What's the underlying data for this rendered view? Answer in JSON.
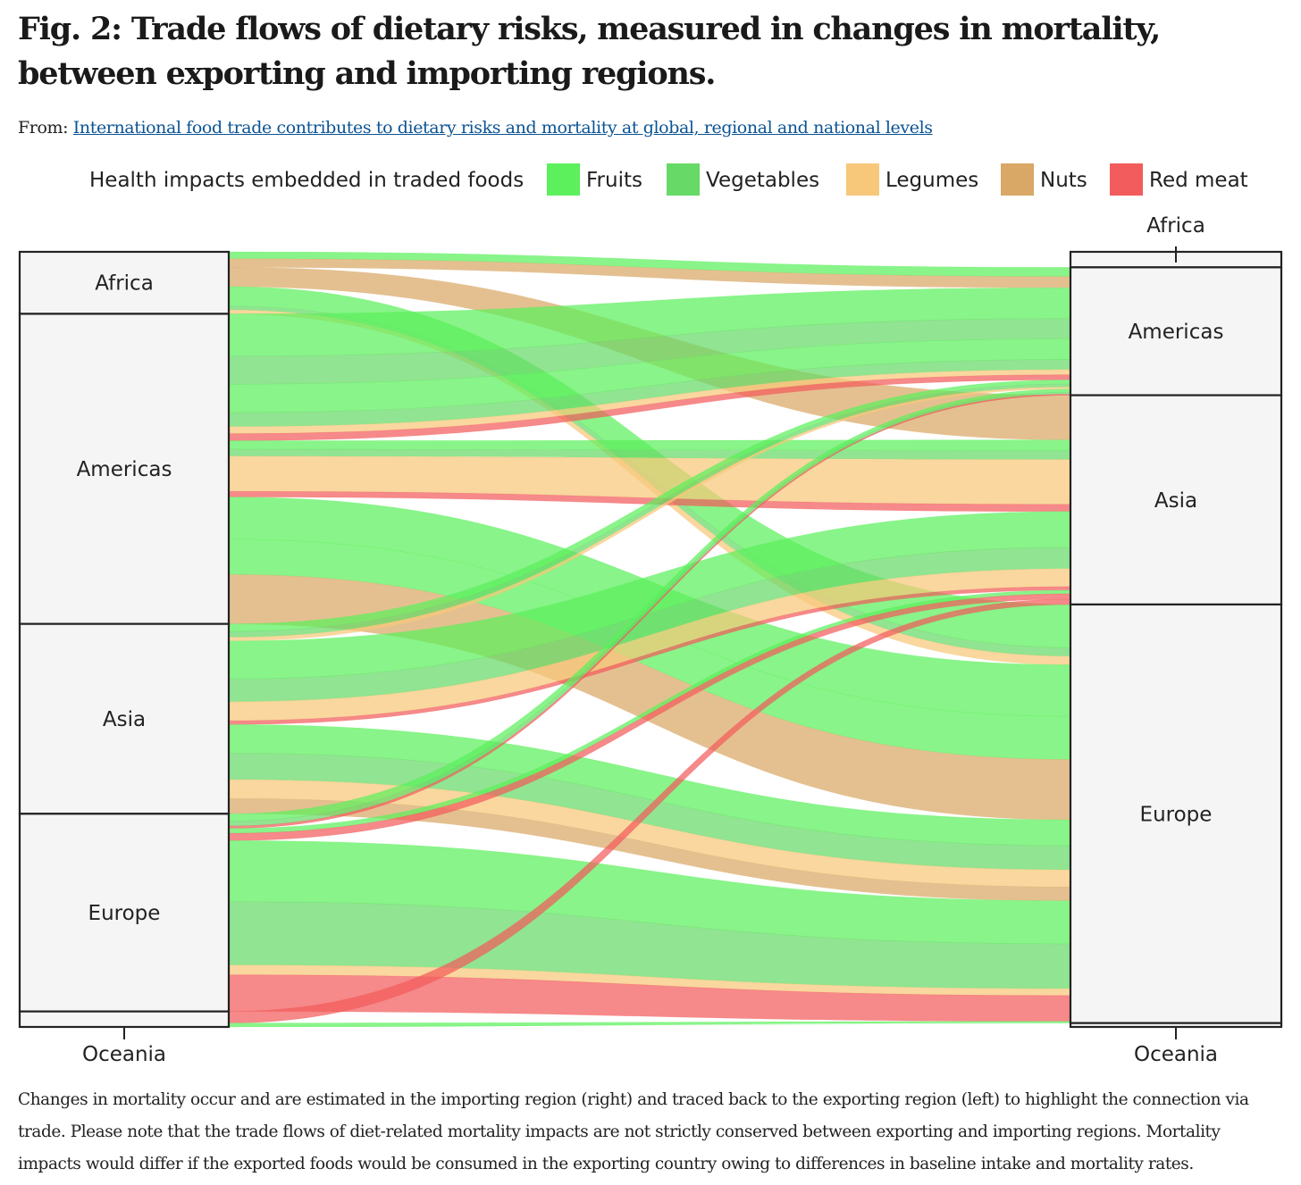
{
  "figure": {
    "title": "Fig. 2: Trade flows of dietary risks, measured in changes in mortality, between exporting and importing regions.",
    "source_prefix": "From:",
    "source_link": "International food trade contributes to dietary risks and mortality at global, regional and national levels",
    "caption": "Changes in mortality occur and are estimated in the importing region (right) and traced back to the exporting region (left) to highlight the connection via trade. Please note that the trade flows of diet-related mortality impacts are not strictly conserved between exporting and importing regions. Mortality impacts would differ if the exported foods would be consumed in the exporting country owing to differences in baseline intake and mortality rates."
  },
  "chart_data": {
    "type": "sankey",
    "legend_title": "Health impacts embedded in traded foods",
    "legend_position": "top",
    "categories": [
      {
        "name": "Fruits",
        "color": "#5cf05c"
      },
      {
        "name": "Vegetables",
        "color": "#66d966"
      },
      {
        "name": "Legumes",
        "color": "#f7c87a"
      },
      {
        "name": "Nuts",
        "color": "#d9a866"
      },
      {
        "name": "Red meat",
        "color": "#f25c5c"
      }
    ],
    "exporters": [
      {
        "name": "Africa",
        "share": 0.08
      },
      {
        "name": "Americas",
        "share": 0.4
      },
      {
        "name": "Asia",
        "share": 0.245
      },
      {
        "name": "Europe",
        "share": 0.255
      },
      {
        "name": "Oceania",
        "share": 0.02
      }
    ],
    "importers": [
      {
        "name": "Africa",
        "share": 0.02
      },
      {
        "name": "Americas",
        "share": 0.165
      },
      {
        "name": "Asia",
        "share": 0.27
      },
      {
        "name": "Europe",
        "share": 0.54
      },
      {
        "name": "Oceania",
        "share": 0.005
      }
    ],
    "flows": [
      {
        "from": "Africa",
        "to": "Americas",
        "category": "Fruits",
        "value": 0.9
      },
      {
        "from": "Africa",
        "to": "Americas",
        "category": "Nuts",
        "value": 1.1
      },
      {
        "from": "Africa",
        "to": "Asia",
        "category": "Nuts",
        "value": 2.5
      },
      {
        "from": "Africa",
        "to": "Europe",
        "category": "Fruits",
        "value": 2.5
      },
      {
        "from": "Africa",
        "to": "Europe",
        "category": "Vegetables",
        "value": 0.5
      },
      {
        "from": "Africa",
        "to": "Europe",
        "category": "Legumes",
        "value": 0.5
      },
      {
        "from": "Americas",
        "to": "Americas",
        "category": "Fruits",
        "value": 3.0
      },
      {
        "from": "Americas",
        "to": "Americas",
        "category": "Vegetables",
        "value": 2.0
      },
      {
        "from": "Americas",
        "to": "Americas",
        "category": "Fruits",
        "value": 2.0
      },
      {
        "from": "Americas",
        "to": "Americas",
        "category": "Vegetables",
        "value": 1.0
      },
      {
        "from": "Americas",
        "to": "Americas",
        "category": "Legumes",
        "value": 0.5
      },
      {
        "from": "Americas",
        "to": "Americas",
        "category": "Red meat",
        "value": 0.5
      },
      {
        "from": "Americas",
        "to": "Asia",
        "category": "Fruits",
        "value": 0.6
      },
      {
        "from": "Americas",
        "to": "Asia",
        "category": "Vegetables",
        "value": 0.5
      },
      {
        "from": "Americas",
        "to": "Asia",
        "category": "Legumes",
        "value": 2.5
      },
      {
        "from": "Americas",
        "to": "Asia",
        "category": "Red meat",
        "value": 0.4
      },
      {
        "from": "Americas",
        "to": "Europe",
        "category": "Fruits",
        "value": 3.0
      },
      {
        "from": "Americas",
        "to": "Europe",
        "category": "Fruits",
        "value": 2.5
      },
      {
        "from": "Americas",
        "to": "Europe",
        "category": "Nuts",
        "value": 3.5
      },
      {
        "from": "Asia",
        "to": "Americas",
        "category": "Fruits",
        "value": 0.4
      },
      {
        "from": "Asia",
        "to": "Americas",
        "category": "Vegetables",
        "value": 0.3
      },
      {
        "from": "Asia",
        "to": "Americas",
        "category": "Legumes",
        "value": 0.2
      },
      {
        "from": "Asia",
        "to": "Asia",
        "category": "Fruits",
        "value": 2.0
      },
      {
        "from": "Asia",
        "to": "Asia",
        "category": "Vegetables",
        "value": 1.2
      },
      {
        "from": "Asia",
        "to": "Asia",
        "category": "Legumes",
        "value": 1.0
      },
      {
        "from": "Asia",
        "to": "Asia",
        "category": "Red meat",
        "value": 0.2
      },
      {
        "from": "Asia",
        "to": "Europe",
        "category": "Fruits",
        "value": 1.5
      },
      {
        "from": "Asia",
        "to": "Europe",
        "category": "Vegetables",
        "value": 1.4
      },
      {
        "from": "Asia",
        "to": "Europe",
        "category": "Legumes",
        "value": 1.0
      },
      {
        "from": "Asia",
        "to": "Europe",
        "category": "Nuts",
        "value": 0.8
      },
      {
        "from": "Europe",
        "to": "Americas",
        "category": "Fruits",
        "value": 0.3
      },
      {
        "from": "Europe",
        "to": "Americas",
        "category": "Vegetables",
        "value": 0.2
      },
      {
        "from": "Europe",
        "to": "Americas",
        "category": "Red meat",
        "value": 0.1
      },
      {
        "from": "Europe",
        "to": "Asia",
        "category": "Fruits",
        "value": 0.2
      },
      {
        "from": "Europe",
        "to": "Asia",
        "category": "Red meat",
        "value": 0.3
      },
      {
        "from": "Europe",
        "to": "Europe",
        "category": "Fruits",
        "value": 2.5
      },
      {
        "from": "Europe",
        "to": "Europe",
        "category": "Vegetables",
        "value": 2.6
      },
      {
        "from": "Europe",
        "to": "Europe",
        "category": "Legumes",
        "value": 0.4
      },
      {
        "from": "Europe",
        "to": "Europe",
        "category": "Red meat",
        "value": 1.5
      },
      {
        "from": "Oceania",
        "to": "Asia",
        "category": "Red meat",
        "value": 0.3
      },
      {
        "from": "Oceania",
        "to": "Europe",
        "category": "Fruits",
        "value": 0.1
      }
    ]
  }
}
